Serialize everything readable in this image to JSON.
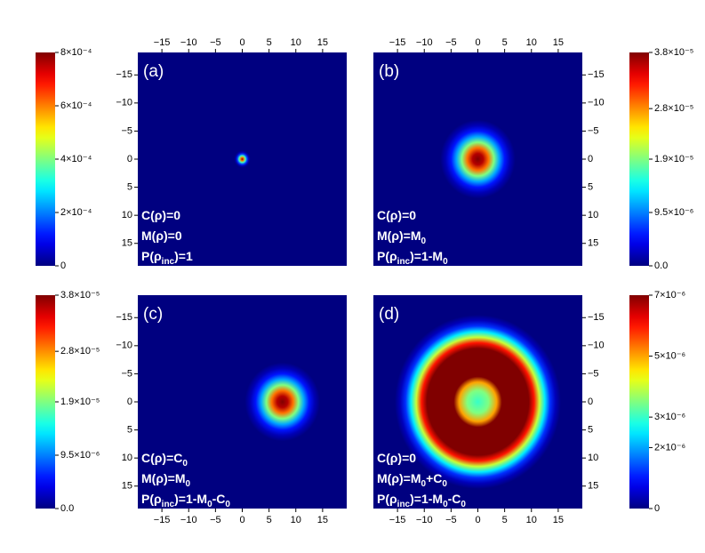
{
  "chart_data": [
    {
      "type": "heatmap",
      "label": "(a)",
      "colormap": "jet",
      "annotations": [
        [
          {
            "text": "C(ρ)=0"
          }
        ],
        [
          {
            "text": "M(ρ)=0"
          }
        ],
        [
          {
            "text": "P(ρ"
          },
          {
            "text": "inc",
            "subscript": true
          },
          {
            "text": ")=1"
          }
        ]
      ],
      "center": [
        0,
        0
      ],
      "radial_profile": {
        "r": [
          0,
          0.3,
          0.6,
          0.9,
          1.2,
          1.5
        ],
        "values": [
          0.0008,
          0.0006,
          0.00035,
          0.00015,
          4e-05,
          0
        ]
      },
      "xlim": [
        -19.5,
        19.5
      ],
      "xticks": [
        {
          "value": -15,
          "label": "−15"
        },
        {
          "value": -10,
          "label": "−10"
        },
        {
          "value": -5,
          "label": "−5"
        },
        0,
        5,
        10,
        15
      ],
      "ylim": [
        19,
        -19
      ],
      "yticks": [
        {
          "value": -15,
          "label": "−15"
        },
        {
          "value": -10,
          "label": "−10"
        },
        {
          "value": -5,
          "label": "−5"
        },
        0,
        5,
        10,
        15
      ],
      "x_axis_position": "top",
      "y_axis_position": "left",
      "colorbar_position": "left",
      "colorbar": {
        "lim": [
          0,
          0.0008
        ],
        "ticks": [
          0,
          {
            "value": 0.0002,
            "label": "2×10⁻⁴"
          },
          {
            "value": 0.0004,
            "label": "4×10⁻⁴"
          },
          {
            "value": 0.0006,
            "label": "6×10⁻⁴"
          },
          {
            "value": 0.0008,
            "label": "8×10⁻⁴"
          }
        ]
      }
    },
    {
      "type": "heatmap",
      "label": "(b)",
      "colormap": "jet",
      "annotations": [
        [
          {
            "text": "C(ρ)=0"
          }
        ],
        [
          {
            "text": "M(ρ)=M"
          },
          {
            "text": "0",
            "subscript": true
          }
        ],
        [
          {
            "text": "P(ρ"
          },
          {
            "text": "inc",
            "subscript": true
          },
          {
            "text": ")=1-M"
          },
          {
            "text": "0",
            "subscript": true
          }
        ]
      ],
      "center": [
        0,
        0
      ],
      "radial_profile": {
        "r": [
          0,
          1,
          2,
          3,
          4,
          5,
          6,
          7
        ],
        "values": [
          3.8e-05,
          3.6e-05,
          2.9e-05,
          1.9e-05,
          1.1e-05,
          5.5e-06,
          2e-06,
          0
        ]
      },
      "xlim": [
        -19.5,
        19.5
      ],
      "xticks": [
        {
          "value": -15,
          "label": "−15"
        },
        {
          "value": -10,
          "label": "−10"
        },
        {
          "value": -5,
          "label": "−5"
        },
        0,
        5,
        10,
        15
      ],
      "ylim": [
        19,
        -19
      ],
      "yticks": [
        {
          "value": -15,
          "label": "−15"
        },
        {
          "value": -10,
          "label": "−10"
        },
        {
          "value": -5,
          "label": "−5"
        },
        0,
        5,
        10,
        15
      ],
      "x_axis_position": "top",
      "y_axis_position": "right",
      "colorbar_position": "right",
      "colorbar": {
        "lim": [
          0,
          3.8e-05
        ],
        "ticks": [
          {
            "value": 0,
            "label": "0.0"
          },
          {
            "value": 9.5e-06,
            "label": "9.5×10⁻⁶"
          },
          {
            "value": 1.9e-05,
            "label": "1.9×10⁻⁵"
          },
          {
            "value": 2.8e-05,
            "label": "2.8×10⁻⁵"
          },
          {
            "value": 3.8e-05,
            "label": "3.8×10⁻⁵"
          }
        ]
      }
    },
    {
      "type": "heatmap",
      "label": "(c)",
      "colormap": "jet",
      "annotations": [
        [
          {
            "text": "C(ρ)=C"
          },
          {
            "text": "0",
            "subscript": true
          }
        ],
        [
          {
            "text": "M(ρ)=M"
          },
          {
            "text": "0",
            "subscript": true
          }
        ],
        [
          {
            "text": "P(ρ"
          },
          {
            "text": "inc",
            "subscript": true
          },
          {
            "text": ")=1-M"
          },
          {
            "text": "0",
            "subscript": true
          },
          {
            "text": "-C"
          },
          {
            "text": "0",
            "subscript": true
          }
        ]
      ],
      "center": [
        7.5,
        0
      ],
      "radial_profile": {
        "r": [
          0,
          1,
          2,
          3,
          4,
          5,
          6,
          7
        ],
        "values": [
          3.8e-05,
          3.6e-05,
          2.9e-05,
          1.9e-05,
          1.1e-05,
          5.5e-06,
          2e-06,
          0
        ]
      },
      "xlim": [
        -19.5,
        19.5
      ],
      "xticks": [
        {
          "value": -15,
          "label": "−15"
        },
        {
          "value": -10,
          "label": "−10"
        },
        {
          "value": -5,
          "label": "−5"
        },
        0,
        5,
        10,
        15
      ],
      "ylim": [
        19,
        -19
      ],
      "yticks": [
        {
          "value": -15,
          "label": "−15"
        },
        {
          "value": -10,
          "label": "−10"
        },
        {
          "value": -5,
          "label": "−5"
        },
        0,
        5,
        10,
        15
      ],
      "x_axis_position": "bottom",
      "y_axis_position": "left",
      "colorbar_position": "left",
      "colorbar": {
        "lim": [
          0,
          3.8e-05
        ],
        "ticks": [
          {
            "value": 0,
            "label": "0.0"
          },
          {
            "value": 9.5e-06,
            "label": "9.5×10⁻⁶"
          },
          {
            "value": 1.9e-05,
            "label": "1.9×10⁻⁵"
          },
          {
            "value": 2.8e-05,
            "label": "2.8×10⁻⁵"
          },
          {
            "value": 3.8e-05,
            "label": "3.8×10⁻⁵"
          }
        ]
      }
    },
    {
      "type": "heatmap",
      "label": "(d)",
      "colormap": "jet",
      "annotations": [
        [
          {
            "text": "C(ρ)=0"
          }
        ],
        [
          {
            "text": "M(ρ)=M"
          },
          {
            "text": "0",
            "subscript": true
          },
          {
            "text": "+C"
          },
          {
            "text": "0",
            "subscript": true
          }
        ],
        [
          {
            "text": "P(ρ"
          },
          {
            "text": "inc",
            "subscript": true
          },
          {
            "text": ")=1-M"
          },
          {
            "text": "0",
            "subscript": true
          },
          {
            "text": "-C"
          },
          {
            "text": "0",
            "subscript": true
          }
        ]
      ],
      "center": [
        0,
        0
      ],
      "radial_profile": {
        "r": [
          0,
          2,
          3.5,
          4.5,
          9.5,
          10.5,
          11.5,
          12.5,
          13.5,
          14.5,
          15.5
        ],
        "values": [
          3e-06,
          3.5e-06,
          5e-06,
          7e-06,
          7e-06,
          6e-06,
          4e-06,
          2.5e-06,
          1.2e-06,
          4e-07,
          0
        ]
      },
      "xlim": [
        -19.5,
        19.5
      ],
      "xticks": [
        {
          "value": -15,
          "label": "−15"
        },
        {
          "value": -10,
          "label": "−10"
        },
        {
          "value": -5,
          "label": "−5"
        },
        0,
        5,
        10,
        15
      ],
      "ylim": [
        19,
        -19
      ],
      "yticks": [
        {
          "value": -15,
          "label": "−15"
        },
        {
          "value": -10,
          "label": "−10"
        },
        {
          "value": -5,
          "label": "−5"
        },
        0,
        5,
        10,
        15
      ],
      "x_axis_position": "bottom",
      "y_axis_position": "right",
      "colorbar_position": "right",
      "colorbar": {
        "lim": [
          0,
          7e-06
        ],
        "ticks": [
          0,
          {
            "value": 2e-06,
            "label": "2×10⁻⁶"
          },
          {
            "value": 3e-06,
            "label": "3×10⁻⁶"
          },
          {
            "value": 5e-06,
            "label": "5×10⁻⁶"
          },
          {
            "value": 7e-06,
            "label": "7×10⁻⁶"
          }
        ]
      }
    }
  ]
}
